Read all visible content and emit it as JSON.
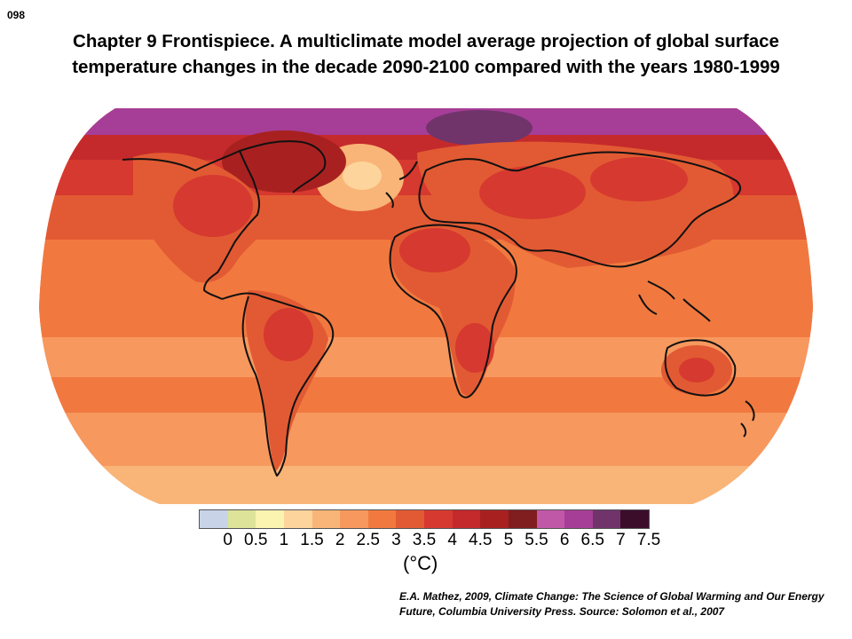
{
  "slide_number": "098",
  "title": "Chapter 9 Frontispiece.  A multiclimate model average projection of global surface temperature changes in the decade 2090-2100  compared with the years 1980-1999",
  "legend": {
    "colors": [
      "#c8d3e8",
      "#dde49a",
      "#fbf3b0",
      "#fcd49c",
      "#f9b577",
      "#f7985f",
      "#f1793f",
      "#e25a33",
      "#d6392f",
      "#c42a2b",
      "#a82120",
      "#7f1d1f",
      "#c158a7",
      "#a63e97",
      "#70346b",
      "#3b0d2b"
    ],
    "ticks": [
      "0",
      "0.5",
      "1",
      "1.5",
      "2",
      "2.5",
      "3",
      "3.5",
      "4",
      "4.5",
      "5",
      "5.5",
      "6",
      "6.5",
      "7",
      "7.5"
    ],
    "unit": "(°C)"
  },
  "credit": "E.A. Mathez, 2009, Climate Change: The Science of Global Warming and Our Energy Future, Columbia University Press.  Source: Solomon et al., 2007"
}
